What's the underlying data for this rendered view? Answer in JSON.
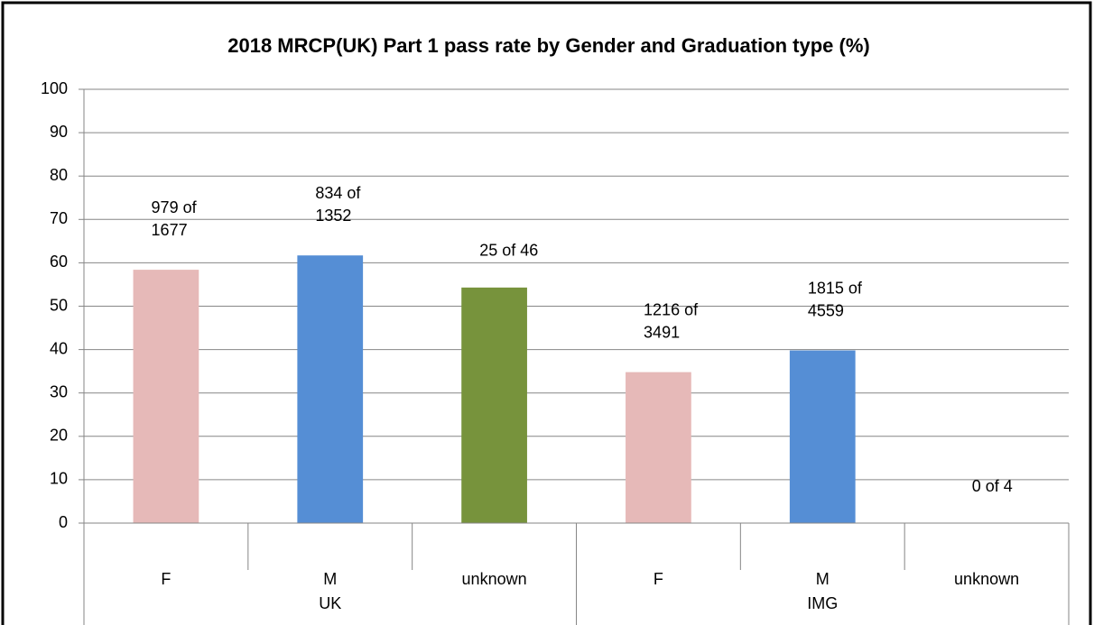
{
  "chart_data": {
    "type": "bar",
    "title": "2018 MRCP(UK) Part 1 pass rate by Gender and Graduation type  (%)",
    "categories": [
      "F",
      "M",
      "unknown",
      "F",
      "M",
      "unknown"
    ],
    "groups": [
      "UK",
      "IMG"
    ],
    "values": [
      58.4,
      61.7,
      54.3,
      34.8,
      39.8,
      0
    ],
    "value_labels": [
      "979 of 1677",
      "834 of 1352",
      "25 of 46",
      "1216 of 3491",
      "1815 of 4559",
      "0 of 4"
    ],
    "colors": [
      "#e6b9b8",
      "#558ed5",
      "#77933c",
      "#e6b9b8",
      "#558ed5",
      "#77933c"
    ],
    "ylim": [
      0,
      100
    ],
    "yticks": [
      0,
      10,
      20,
      30,
      40,
      50,
      60,
      70,
      80,
      90,
      100
    ],
    "grid": true
  }
}
